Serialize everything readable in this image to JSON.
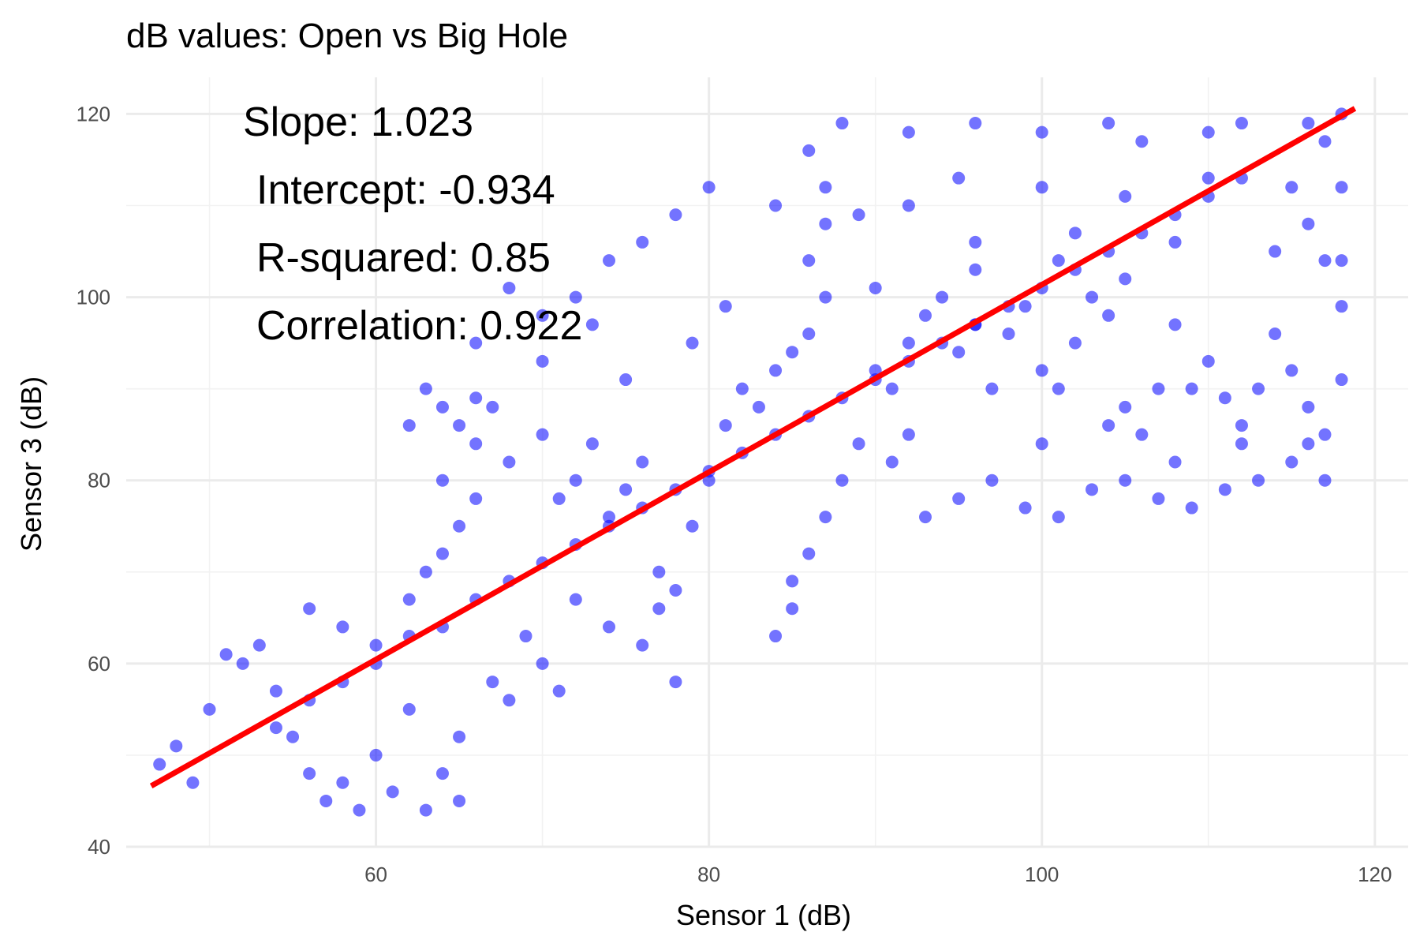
{
  "chart_data": {
    "type": "scatter",
    "title": "dB values: Open vs Big Hole",
    "xlabel": "Sensor 1 (dB)",
    "ylabel": "Sensor 3 (dB)",
    "xlim": [
      45,
      122
    ],
    "ylim": [
      40,
      124
    ],
    "x_ticks": [
      60,
      80,
      100,
      120
    ],
    "y_ticks": [
      40,
      60,
      80,
      100,
      120
    ],
    "grid": true,
    "point_color": "#0000ff",
    "fit_line_color": "#ff0000",
    "fit_line": {
      "slope": 1.023,
      "intercept": -0.934,
      "x_range": [
        46.5,
        118.8
      ]
    },
    "annotations": [
      "Slope: 1.023",
      "Intercept: -0.934",
      "R-squared: 0.85",
      "Correlation: 0.922"
    ],
    "series": [
      {
        "points": [
          [
            47,
            49
          ],
          [
            48,
            51
          ],
          [
            49,
            47
          ],
          [
            50,
            55
          ],
          [
            51,
            61
          ],
          [
            52,
            60
          ],
          [
            53,
            62
          ],
          [
            54,
            57
          ],
          [
            55,
            52
          ],
          [
            56,
            48
          ],
          [
            57,
            45
          ],
          [
            58,
            47
          ],
          [
            59,
            44
          ],
          [
            60,
            50
          ],
          [
            61,
            46
          ],
          [
            62,
            55
          ],
          [
            63,
            44
          ],
          [
            64,
            48
          ],
          [
            65,
            45
          ],
          [
            65,
            52
          ],
          [
            56,
            66
          ],
          [
            58,
            64
          ],
          [
            60,
            62
          ],
          [
            62,
            67
          ],
          [
            63,
            70
          ],
          [
            64,
            72
          ],
          [
            65,
            75
          ],
          [
            66,
            78
          ],
          [
            64,
            80
          ],
          [
            66,
            84
          ],
          [
            64,
            88
          ],
          [
            65,
            86
          ],
          [
            66,
            89
          ],
          [
            62,
            86
          ],
          [
            63,
            90
          ],
          [
            67,
            88
          ],
          [
            68,
            82
          ],
          [
            70,
            85
          ],
          [
            71,
            78
          ],
          [
            72,
            80
          ],
          [
            73,
            84
          ],
          [
            74,
            76
          ],
          [
            75,
            79
          ],
          [
            76,
            82
          ],
          [
            77,
            70
          ],
          [
            78,
            68
          ],
          [
            79,
            75
          ],
          [
            80,
            80
          ],
          [
            81,
            86
          ],
          [
            82,
            90
          ],
          [
            83,
            88
          ],
          [
            84,
            92
          ],
          [
            85,
            94
          ],
          [
            86,
            96
          ],
          [
            87,
            100
          ],
          [
            86,
            104
          ],
          [
            87,
            108
          ],
          [
            87,
            112
          ],
          [
            86,
            116
          ],
          [
            88,
            119
          ],
          [
            87,
            76
          ],
          [
            86,
            72
          ],
          [
            85,
            66
          ],
          [
            84,
            63
          ],
          [
            85,
            69
          ],
          [
            88,
            80
          ],
          [
            89,
            84
          ],
          [
            90,
            92
          ],
          [
            91,
            90
          ],
          [
            92,
            95
          ],
          [
            93,
            98
          ],
          [
            94,
            100
          ],
          [
            95,
            94
          ],
          [
            96,
            97
          ],
          [
            97,
            90
          ],
          [
            98,
            96
          ],
          [
            99,
            99
          ],
          [
            100,
            92
          ],
          [
            101,
            90
          ],
          [
            102,
            95
          ],
          [
            103,
            100
          ],
          [
            104,
            98
          ],
          [
            105,
            88
          ],
          [
            106,
            85
          ],
          [
            107,
            90
          ],
          [
            108,
            97
          ],
          [
            109,
            90
          ],
          [
            110,
            93
          ],
          [
            111,
            89
          ],
          [
            112,
            84
          ],
          [
            113,
            90
          ],
          [
            114,
            96
          ],
          [
            115,
            92
          ],
          [
            116,
            88
          ],
          [
            117,
            85
          ],
          [
            118,
            91
          ],
          [
            118,
            99
          ],
          [
            117,
            104
          ],
          [
            116,
            108
          ],
          [
            118,
            112
          ],
          [
            117,
            117
          ],
          [
            118,
            120
          ],
          [
            116,
            119
          ],
          [
            112,
            119
          ],
          [
            110,
            118
          ],
          [
            106,
            117
          ],
          [
            104,
            119
          ],
          [
            100,
            118
          ],
          [
            96,
            119
          ],
          [
            92,
            118
          ],
          [
            95,
            113
          ],
          [
            100,
            112
          ],
          [
            105,
            111
          ],
          [
            110,
            113
          ],
          [
            115,
            112
          ],
          [
            96,
            106
          ],
          [
            102,
            107
          ],
          [
            108,
            106
          ],
          [
            114,
            105
          ],
          [
            118,
            104
          ],
          [
            90,
            101
          ],
          [
            96,
            103
          ],
          [
            101,
            104
          ],
          [
            105,
            102
          ],
          [
            89,
            109
          ],
          [
            92,
            110
          ],
          [
            84,
            110
          ],
          [
            80,
            112
          ],
          [
            78,
            109
          ],
          [
            76,
            106
          ],
          [
            74,
            104
          ],
          [
            72,
            100
          ],
          [
            70,
            98
          ],
          [
            68,
            101
          ],
          [
            66,
            95
          ],
          [
            70,
            93
          ],
          [
            73,
            97
          ],
          [
            75,
            91
          ],
          [
            79,
            95
          ],
          [
            81,
            99
          ],
          [
            77,
            66
          ],
          [
            76,
            62
          ],
          [
            78,
            58
          ],
          [
            74,
            64
          ],
          [
            72,
            67
          ],
          [
            70,
            60
          ],
          [
            69,
            63
          ],
          [
            67,
            58
          ],
          [
            68,
            56
          ],
          [
            71,
            57
          ],
          [
            99,
            77
          ],
          [
            101,
            76
          ],
          [
            103,
            79
          ],
          [
            105,
            80
          ],
          [
            107,
            78
          ],
          [
            109,
            77
          ],
          [
            111,
            79
          ],
          [
            113,
            80
          ],
          [
            115,
            82
          ],
          [
            117,
            80
          ],
          [
            93,
            76
          ],
          [
            95,
            78
          ],
          [
            97,
            80
          ],
          [
            91,
            82
          ],
          [
            92,
            85
          ],
          [
            100,
            84
          ],
          [
            104,
            86
          ],
          [
            108,
            82
          ],
          [
            112,
            86
          ],
          [
            116,
            84
          ],
          [
            54,
            53
          ],
          [
            56,
            56
          ],
          [
            58,
            58
          ],
          [
            60,
            60
          ],
          [
            62,
            63
          ],
          [
            64,
            64
          ],
          [
            66,
            67
          ],
          [
            68,
            69
          ],
          [
            70,
            71
          ],
          [
            72,
            73
          ],
          [
            74,
            75
          ],
          [
            76,
            77
          ],
          [
            78,
            79
          ],
          [
            80,
            81
          ],
          [
            82,
            83
          ],
          [
            84,
            85
          ],
          [
            86,
            87
          ],
          [
            88,
            89
          ],
          [
            90,
            91
          ],
          [
            92,
            93
          ],
          [
            94,
            95
          ],
          [
            96,
            97
          ],
          [
            98,
            99
          ],
          [
            100,
            101
          ],
          [
            102,
            103
          ],
          [
            104,
            105
          ],
          [
            106,
            107
          ],
          [
            108,
            109
          ],
          [
            110,
            111
          ],
          [
            112,
            113
          ]
        ]
      }
    ]
  }
}
